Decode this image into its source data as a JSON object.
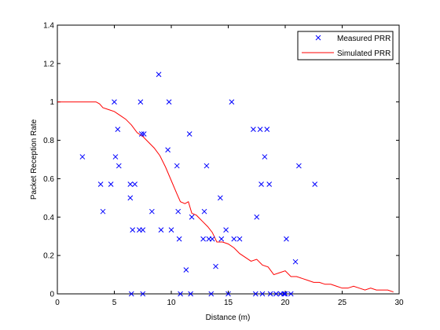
{
  "colors": {
    "measured": "#0000ff",
    "simulated": "#ff0000",
    "axis": "#000000",
    "background": "#ffffff"
  },
  "chart_data": {
    "type": "scatter",
    "xlabel": "Distance (m)",
    "ylabel": "Packet Reception Rate",
    "xlim": [
      0,
      30
    ],
    "ylim": [
      0,
      1.4
    ],
    "xticks": [
      0,
      5,
      10,
      15,
      20,
      25,
      30
    ],
    "xtick_labels": [
      "0",
      "5",
      "10",
      "15",
      "20",
      "25",
      "30"
    ],
    "yticks": [
      0,
      0.2,
      0.4,
      0.6,
      0.8,
      1.0,
      1.2,
      1.4
    ],
    "ytick_labels": [
      "0",
      "0.2",
      "0.4",
      "0.6",
      "0.8",
      "1",
      "1.2",
      "1.4"
    ],
    "grid": false,
    "legend_position": "top-right",
    "series": [
      {
        "name": "Measured PRR",
        "marker": "x",
        "points": [
          [
            2.2,
            0.714
          ],
          [
            3.8,
            0.571
          ],
          [
            4.0,
            0.429
          ],
          [
            4.7,
            0.571
          ],
          [
            5.0,
            1.0
          ],
          [
            5.1,
            0.714
          ],
          [
            5.3,
            0.857
          ],
          [
            5.4,
            0.667
          ],
          [
            6.4,
            0.571
          ],
          [
            6.4,
            0.5
          ],
          [
            6.5,
            0.0
          ],
          [
            6.6,
            0.333
          ],
          [
            6.8,
            0.571
          ],
          [
            7.2,
            0.333
          ],
          [
            7.3,
            1.0
          ],
          [
            7.4,
            0.833
          ],
          [
            7.5,
            0.0
          ],
          [
            7.5,
            0.333
          ],
          [
            7.6,
            0.833
          ],
          [
            8.3,
            0.429
          ],
          [
            8.9,
            1.143
          ],
          [
            9.1,
            0.333
          ],
          [
            9.7,
            0.75
          ],
          [
            9.8,
            1.0
          ],
          [
            10.0,
            0.333
          ],
          [
            10.5,
            0.667
          ],
          [
            10.6,
            0.429
          ],
          [
            10.7,
            0.286
          ],
          [
            10.8,
            0.0
          ],
          [
            11.3,
            0.125
          ],
          [
            11.6,
            0.833
          ],
          [
            11.7,
            0.0
          ],
          [
            11.8,
            0.4
          ],
          [
            12.8,
            0.286
          ],
          [
            12.9,
            0.429
          ],
          [
            13.1,
            0.667
          ],
          [
            13.3,
            0.286
          ],
          [
            13.5,
            0.0
          ],
          [
            13.6,
            0.286
          ],
          [
            13.9,
            0.143
          ],
          [
            14.3,
            0.5
          ],
          [
            14.4,
            0.286
          ],
          [
            14.8,
            0.333
          ],
          [
            15.0,
            0.0
          ],
          [
            15.3,
            1.0
          ],
          [
            15.5,
            0.286
          ],
          [
            16.0,
            0.286
          ],
          [
            17.2,
            0.857
          ],
          [
            17.4,
            0.0
          ],
          [
            17.5,
            0.4
          ],
          [
            17.8,
            0.857
          ],
          [
            17.9,
            0.571
          ],
          [
            18.0,
            0.0
          ],
          [
            18.2,
            0.714
          ],
          [
            18.4,
            0.857
          ],
          [
            18.6,
            0.571
          ],
          [
            18.7,
            0.0
          ],
          [
            19.2,
            0.0
          ],
          [
            19.6,
            0.0
          ],
          [
            19.9,
            0.0
          ],
          [
            20.0,
            0.0
          ],
          [
            20.1,
            0.286
          ],
          [
            20.5,
            0.0
          ],
          [
            20.9,
            0.167
          ],
          [
            21.2,
            0.667
          ],
          [
            22.6,
            0.571
          ]
        ]
      },
      {
        "name": "Simulated PRR",
        "line": "solid",
        "points": [
          [
            0,
            1.0
          ],
          [
            1,
            1.0
          ],
          [
            2,
            1.0
          ],
          [
            3,
            1.0
          ],
          [
            3.4,
            1.0
          ],
          [
            3.7,
            0.99
          ],
          [
            4.0,
            0.97
          ],
          [
            4.5,
            0.96
          ],
          [
            5.0,
            0.95
          ],
          [
            5.5,
            0.93
          ],
          [
            6.0,
            0.91
          ],
          [
            6.5,
            0.88
          ],
          [
            7.0,
            0.84
          ],
          [
            7.5,
            0.82
          ],
          [
            8.0,
            0.79
          ],
          [
            8.5,
            0.76
          ],
          [
            9.0,
            0.72
          ],
          [
            9.5,
            0.66
          ],
          [
            10.0,
            0.59
          ],
          [
            10.5,
            0.52
          ],
          [
            10.8,
            0.48
          ],
          [
            11.2,
            0.47
          ],
          [
            11.5,
            0.48
          ],
          [
            11.8,
            0.42
          ],
          [
            12.2,
            0.41
          ],
          [
            12.7,
            0.38
          ],
          [
            13.2,
            0.35
          ],
          [
            13.6,
            0.32
          ],
          [
            14.0,
            0.27
          ],
          [
            14.5,
            0.27
          ],
          [
            15.0,
            0.26
          ],
          [
            15.5,
            0.24
          ],
          [
            16.0,
            0.21
          ],
          [
            16.5,
            0.19
          ],
          [
            17.0,
            0.17
          ],
          [
            17.5,
            0.18
          ],
          [
            18.0,
            0.15
          ],
          [
            18.5,
            0.14
          ],
          [
            19.0,
            0.1
          ],
          [
            19.5,
            0.11
          ],
          [
            20.0,
            0.12
          ],
          [
            20.5,
            0.09
          ],
          [
            21.0,
            0.09
          ],
          [
            21.5,
            0.08
          ],
          [
            22.0,
            0.07
          ],
          [
            22.5,
            0.06
          ],
          [
            23.0,
            0.06
          ],
          [
            23.5,
            0.05
          ],
          [
            24.0,
            0.05
          ],
          [
            24.5,
            0.04
          ],
          [
            25.0,
            0.03
          ],
          [
            25.5,
            0.03
          ],
          [
            26.0,
            0.04
          ],
          [
            26.5,
            0.03
          ],
          [
            27.0,
            0.02
          ],
          [
            27.5,
            0.03
          ],
          [
            28.0,
            0.02
          ],
          [
            28.5,
            0.02
          ],
          [
            29.0,
            0.02
          ],
          [
            29.5,
            0.01
          ]
        ]
      }
    ]
  }
}
